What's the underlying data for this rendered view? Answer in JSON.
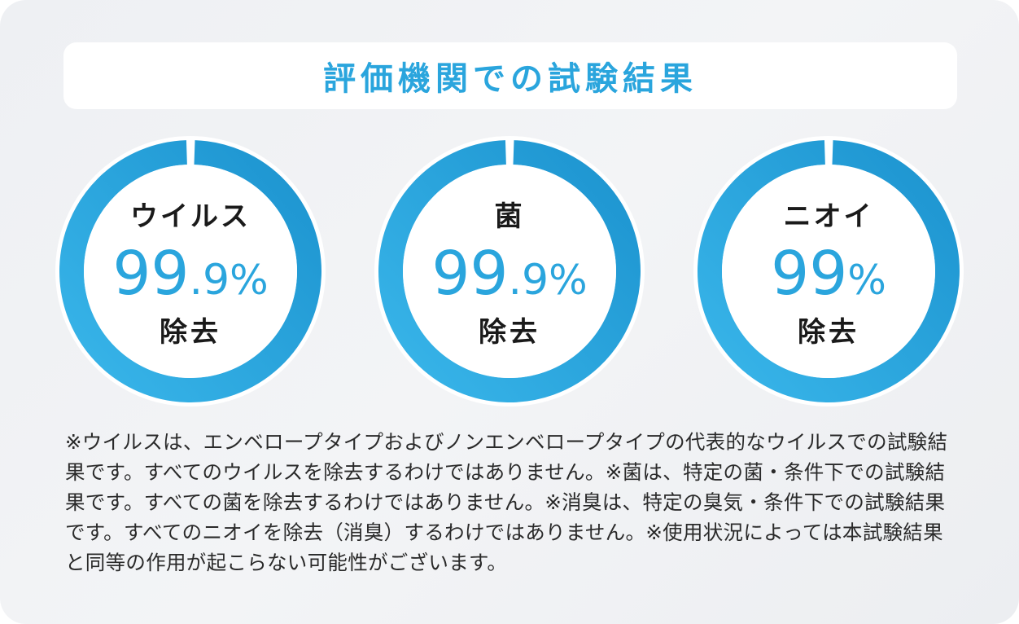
{
  "title": "評価機関での試験結果",
  "results": [
    {
      "label": "ウイルス",
      "value_int": "99",
      "value_dec": ".9",
      "unit": "%",
      "action": "除去",
      "fraction": 0.999
    },
    {
      "label": "菌",
      "value_int": "99",
      "value_dec": ".9",
      "unit": "%",
      "action": "除去",
      "fraction": 0.999
    },
    {
      "label": "ニオイ",
      "value_int": "99",
      "value_dec": "",
      "unit": "%",
      "action": "除去",
      "fraction": 0.99
    }
  ],
  "colors": {
    "accent": "#2aa5dd",
    "ring_gradient_light": "#34b3e8",
    "ring_gradient_dark": "#1f98d3",
    "text": "#1a1a1a"
  },
  "notes": "※ウイルスは、エンベロープタイプおよびノンエンベロープタイプの代表的なウイルスでの試験結果です。すべてのウイルスを除去するわけではありません。※菌は、特定の菌・条件下での試験結果です。すべての菌を除去するわけではありません。※消臭は、特定の臭気・条件下での試験結果です。すべてのニオイを除去（消臭）するわけではありません。※使用状況によっては本試験結果と同等の作用が起こらない可能性がございます。"
}
